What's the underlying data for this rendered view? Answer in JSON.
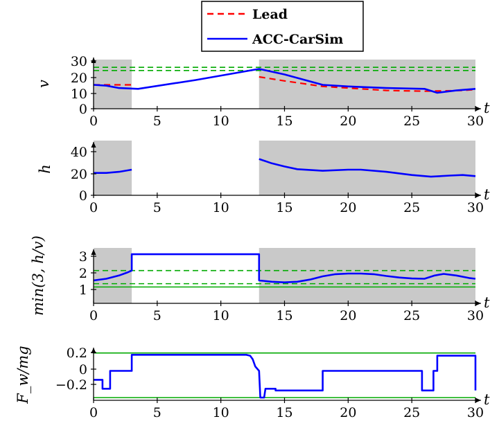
{
  "legend": {
    "entries": [
      {
        "label": "Lead",
        "color": "#ff0000",
        "dash": true
      },
      {
        "label": "ACC-CarSim",
        "color": "#0000ff",
        "dash": false
      }
    ]
  },
  "chart_data": [
    {
      "type": "line",
      "ylabel": "v",
      "xlabel": "t",
      "xlim": [
        0,
        30
      ],
      "ylim": [
        0,
        30
      ],
      "xticks": [
        "0",
        "5",
        "10",
        "15",
        "20",
        "25",
        "30"
      ],
      "yticks": [
        "0",
        "10",
        "20",
        "30"
      ],
      "shaded_intervals": [
        [
          0,
          3
        ],
        [
          13,
          30
        ]
      ],
      "hlines": [
        {
          "y": 24,
          "color": "#00aa00",
          "dash": true
        },
        {
          "y": 26,
          "color": "#00aa00",
          "dash": true
        }
      ],
      "series": [
        {
          "name": "Lead",
          "color": "#ff0000",
          "dash": true,
          "segments": [
            [
              [
                0,
                15
              ],
              [
                3,
                15
              ]
            ],
            [
              [
                13,
                20
              ],
              [
                15,
                17.5
              ],
              [
                18,
                14
              ],
              [
                20,
                13
              ],
              [
                23,
                11.5
              ],
              [
                26,
                11
              ],
              [
                29,
                11.5
              ],
              [
                30,
                12
              ]
            ]
          ]
        },
        {
          "name": "ACC-CarSim",
          "color": "#0000ff",
          "dash": false,
          "segments": [
            [
              [
                0,
                15
              ],
              [
                1,
                14.5
              ],
              [
                2,
                13
              ],
              [
                3.5,
                12.5
              ],
              [
                8,
                18
              ],
              [
                13,
                25
              ],
              [
                15,
                21.5
              ],
              [
                18,
                15
              ],
              [
                20,
                14
              ],
              [
                23,
                13
              ],
              [
                26,
                12.5
              ],
              [
                27,
                10
              ],
              [
                28.5,
                11.5
              ],
              [
                30,
                12.5
              ]
            ]
          ]
        }
      ]
    },
    {
      "type": "line",
      "ylabel": "h",
      "xlabel": "t",
      "xlim": [
        0,
        30
      ],
      "ylim": [
        0,
        50
      ],
      "xticks": [
        "0",
        "5",
        "10",
        "15",
        "20",
        "25",
        "30"
      ],
      "yticks": [
        "0",
        "20",
        "40"
      ],
      "shaded_intervals": [
        [
          0,
          3
        ],
        [
          13,
          30
        ]
      ],
      "hlines": [],
      "series": [
        {
          "name": "",
          "color": "#0000ff",
          "dash": false,
          "segments": [
            [
              [
                0,
                21
              ],
              [
                1,
                21
              ],
              [
                2,
                22
              ],
              [
                3,
                24
              ]
            ],
            [
              [
                13,
                34
              ],
              [
                14,
                30
              ],
              [
                15,
                27
              ],
              [
                16,
                24.5
              ],
              [
                18,
                23
              ],
              [
                20,
                24
              ],
              [
                21,
                24
              ],
              [
                23,
                22
              ],
              [
                25,
                19
              ],
              [
                26.5,
                17.5
              ],
              [
                28,
                18.5
              ],
              [
                29,
                19
              ],
              [
                30,
                18
              ]
            ]
          ]
        }
      ]
    },
    {
      "type": "line",
      "ylabel": "min(3, h/v)",
      "xlabel": "t",
      "xlim": [
        0,
        30
      ],
      "ylim": [
        0,
        3.3
      ],
      "xticks": [
        "0",
        "5",
        "10",
        "15",
        "20",
        "25",
        "30"
      ],
      "yticks": [
        "1",
        "2",
        "3"
      ],
      "shaded_intervals": [
        [
          0,
          3
        ],
        [
          13,
          30
        ]
      ],
      "hlines": [
        {
          "y": 1,
          "color": "#00aa00",
          "dash": false
        },
        {
          "y": 1.2,
          "color": "#00aa00",
          "dash": true
        },
        {
          "y": 2,
          "color": "#00aa00",
          "dash": true
        }
      ],
      "series": [
        {
          "name": "",
          "color": "#0000ff",
          "dash": false,
          "segments": [
            [
              [
                0,
                1.4
              ],
              [
                1,
                1.5
              ],
              [
                2,
                1.7
              ],
              [
                2.7,
                1.9
              ],
              [
                3,
                2
              ],
              [
                3,
                3
              ],
              [
                13,
                3
              ],
              [
                13,
                1.4
              ],
              [
                14,
                1.32
              ],
              [
                15,
                1.28
              ],
              [
                16,
                1.32
              ],
              [
                17,
                1.45
              ],
              [
                18,
                1.65
              ],
              [
                19,
                1.78
              ],
              [
                20,
                1.82
              ],
              [
                21,
                1.82
              ],
              [
                22,
                1.78
              ],
              [
                23,
                1.67
              ],
              [
                24,
                1.58
              ],
              [
                25,
                1.52
              ],
              [
                26,
                1.5
              ],
              [
                26.8,
                1.7
              ],
              [
                27.5,
                1.8
              ],
              [
                28.5,
                1.7
              ],
              [
                29.5,
                1.55
              ],
              [
                30,
                1.5
              ]
            ]
          ]
        }
      ]
    },
    {
      "type": "line",
      "ylabel": "F_w/mg",
      "xlabel": "t",
      "xlim": [
        0,
        30
      ],
      "ylim": [
        -0.33,
        0.26
      ],
      "xticks": [
        "0",
        "5",
        "10",
        "15",
        "20",
        "25",
        "30"
      ],
      "yticks": [
        "0.2",
        "0",
        "−0.2"
      ],
      "shaded_intervals": [],
      "hlines": [
        {
          "y": 0.2,
          "color": "#00aa00",
          "dash": false
        },
        {
          "y": -0.3,
          "color": "#00aa00",
          "dash": false
        }
      ],
      "series": [
        {
          "name": "",
          "color": "#0000ff",
          "dash": false,
          "segments": [
            [
              [
                0,
                -0.1
              ],
              [
                0.7,
                -0.1
              ],
              [
                0.7,
                -0.2
              ],
              [
                1.3,
                -0.2
              ],
              [
                1.3,
                0
              ],
              [
                3,
                0
              ],
              [
                3,
                0.18
              ],
              [
                12,
                0.18
              ],
              [
                12.3,
                0.17
              ],
              [
                12.5,
                0.13
              ],
              [
                12.7,
                0.05
              ],
              [
                13,
                0
              ],
              [
                13.1,
                -0.3
              ],
              [
                13.4,
                -0.3
              ],
              [
                13.5,
                -0.2
              ],
              [
                14.3,
                -0.2
              ],
              [
                14.3,
                -0.22
              ],
              [
                18,
                -0.22
              ],
              [
                18,
                0
              ],
              [
                25.8,
                0
              ],
              [
                25.8,
                -0.22
              ],
              [
                26.7,
                -0.22
              ],
              [
                26.7,
                0
              ],
              [
                27,
                0
              ],
              [
                27,
                0.17
              ],
              [
                30,
                0.17
              ],
              [
                30,
                -0.22
              ]
            ]
          ]
        }
      ]
    }
  ]
}
